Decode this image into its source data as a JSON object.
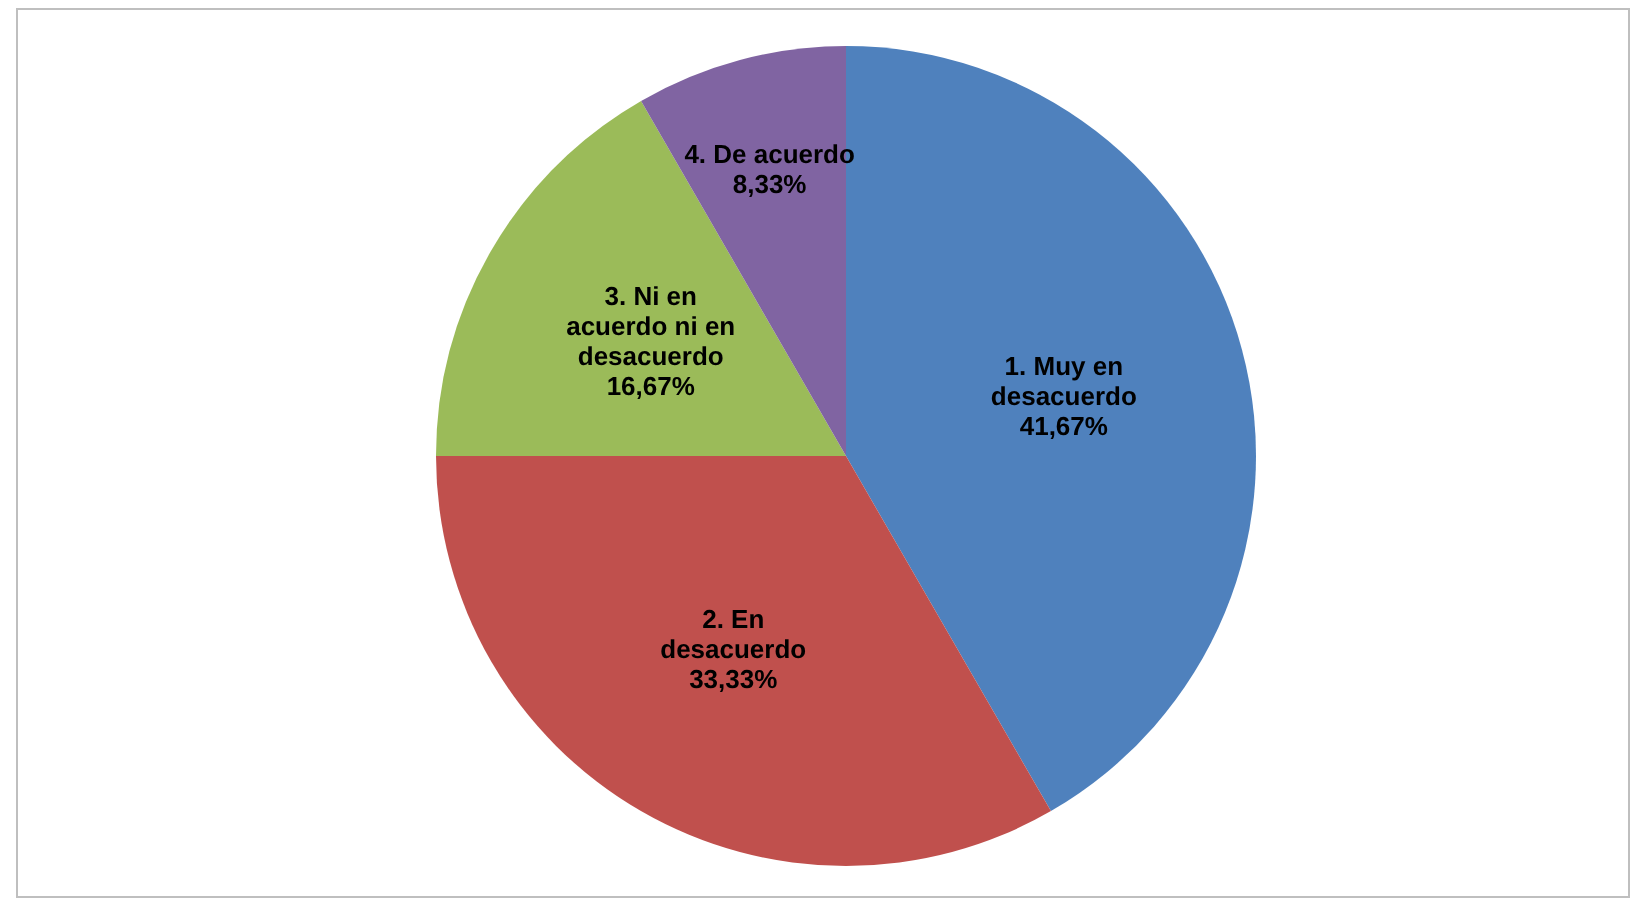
{
  "chart_data": {
    "type": "pie",
    "categories": [
      "1. Muy en desacuerdo",
      "2. En desacuerdo",
      "3. Ni en acuerdo ni en desacuerdo",
      "4. De acuerdo"
    ],
    "values": [
      41.67,
      33.33,
      16.67,
      8.33
    ],
    "value_labels": [
      "41,67%",
      "33,33%",
      "16,67%",
      "8,33%"
    ],
    "colors": [
      "#4f81bd",
      "#c0504d",
      "#9bbb59",
      "#8064a2"
    ],
    "legend": false
  }
}
